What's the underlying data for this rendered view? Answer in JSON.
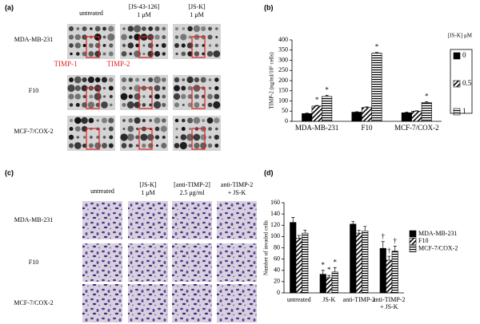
{
  "panel_a": {
    "label": "(a)",
    "columns": [
      [
        "untreated"
      ],
      [
        "[JS-43-126]",
        "1 μM"
      ],
      [
        "[JS-K]",
        "1 μM"
      ]
    ],
    "rows": [
      "MDA-MB-231",
      "F10",
      "MCF-7/COX-2"
    ],
    "spots": [
      "TIMP-1",
      "TIMP-2"
    ]
  },
  "panel_c": {
    "label": "(c)",
    "columns": [
      [
        "untreated"
      ],
      [
        "[JS-K]",
        "1 μM"
      ],
      [
        "[anti-TIMP-2]",
        "2.5 μg/ml"
      ],
      [
        "anti-TIMP-2",
        "+ JS-K"
      ]
    ],
    "rows": [
      "MDA-MB-231",
      "F10",
      "MCF-7/COX-2"
    ]
  },
  "chart_data": [
    {
      "type": "bar",
      "panel": "(b)",
      "y_label": "TIMP-2 (ng/ml/10⁶ cells)",
      "legend_title": "[JS-K] μM",
      "categories": [
        "MDA-MB-231",
        "F10",
        "MCF-7/COX-2"
      ],
      "series": [
        {
          "name": "0",
          "color": "#000000",
          "pattern": "solid",
          "values": [
            38,
            45,
            42
          ],
          "errors": [
            3,
            2,
            3
          ],
          "markers": [
            null,
            null,
            null
          ]
        },
        {
          "name": "0.5",
          "color": "#000000",
          "pattern": "diagonal",
          "values": [
            75,
            68,
            50
          ],
          "errors": [
            3,
            3,
            2
          ],
          "markers": [
            "*",
            null,
            null
          ]
        },
        {
          "name": "1",
          "color": "#000000",
          "pattern": "horizontal",
          "values": [
            122,
            335,
            92
          ],
          "errors": [
            6,
            4,
            4
          ],
          "markers": [
            "*",
            "*",
            "*"
          ]
        }
      ],
      "ylim": [
        0,
        400
      ],
      "yticks": [
        0,
        50,
        100,
        150,
        200,
        250,
        300,
        350,
        400
      ],
      "grid": false,
      "legend": "right"
    },
    {
      "type": "bar",
      "panel": "(d)",
      "y_label": "Number of invaded cells",
      "categories": [
        "untreated",
        "JS-K",
        "anti-TIMP-2",
        "anti-TIMP-2 + JS-K"
      ],
      "series": [
        {
          "name": "MDA-MB-231",
          "color": "#000000",
          "pattern": "solid",
          "values": [
            125,
            33,
            122,
            79
          ],
          "errors": [
            9,
            7,
            5,
            12
          ],
          "markers": [
            null,
            "*",
            null,
            "†"
          ]
        },
        {
          "name": "F10",
          "color": "#000000",
          "pattern": "diagonal",
          "values": [
            97,
            27,
            106,
            58
          ],
          "errors": [
            5,
            4,
            5,
            7
          ],
          "markers": [
            null,
            "*",
            null,
            "†"
          ]
        },
        {
          "name": "MCF-7/COX-2",
          "color": "#000000",
          "pattern": "horizontal",
          "values": [
            106,
            37,
            110,
            74
          ],
          "errors": [
            5,
            8,
            8,
            9
          ],
          "markers": [
            null,
            "*",
            null,
            "†"
          ]
        }
      ],
      "ylim": [
        0,
        160
      ],
      "yticks": [
        0,
        20,
        40,
        60,
        80,
        100,
        120,
        140,
        160
      ],
      "grid": false,
      "legend": "right"
    }
  ]
}
